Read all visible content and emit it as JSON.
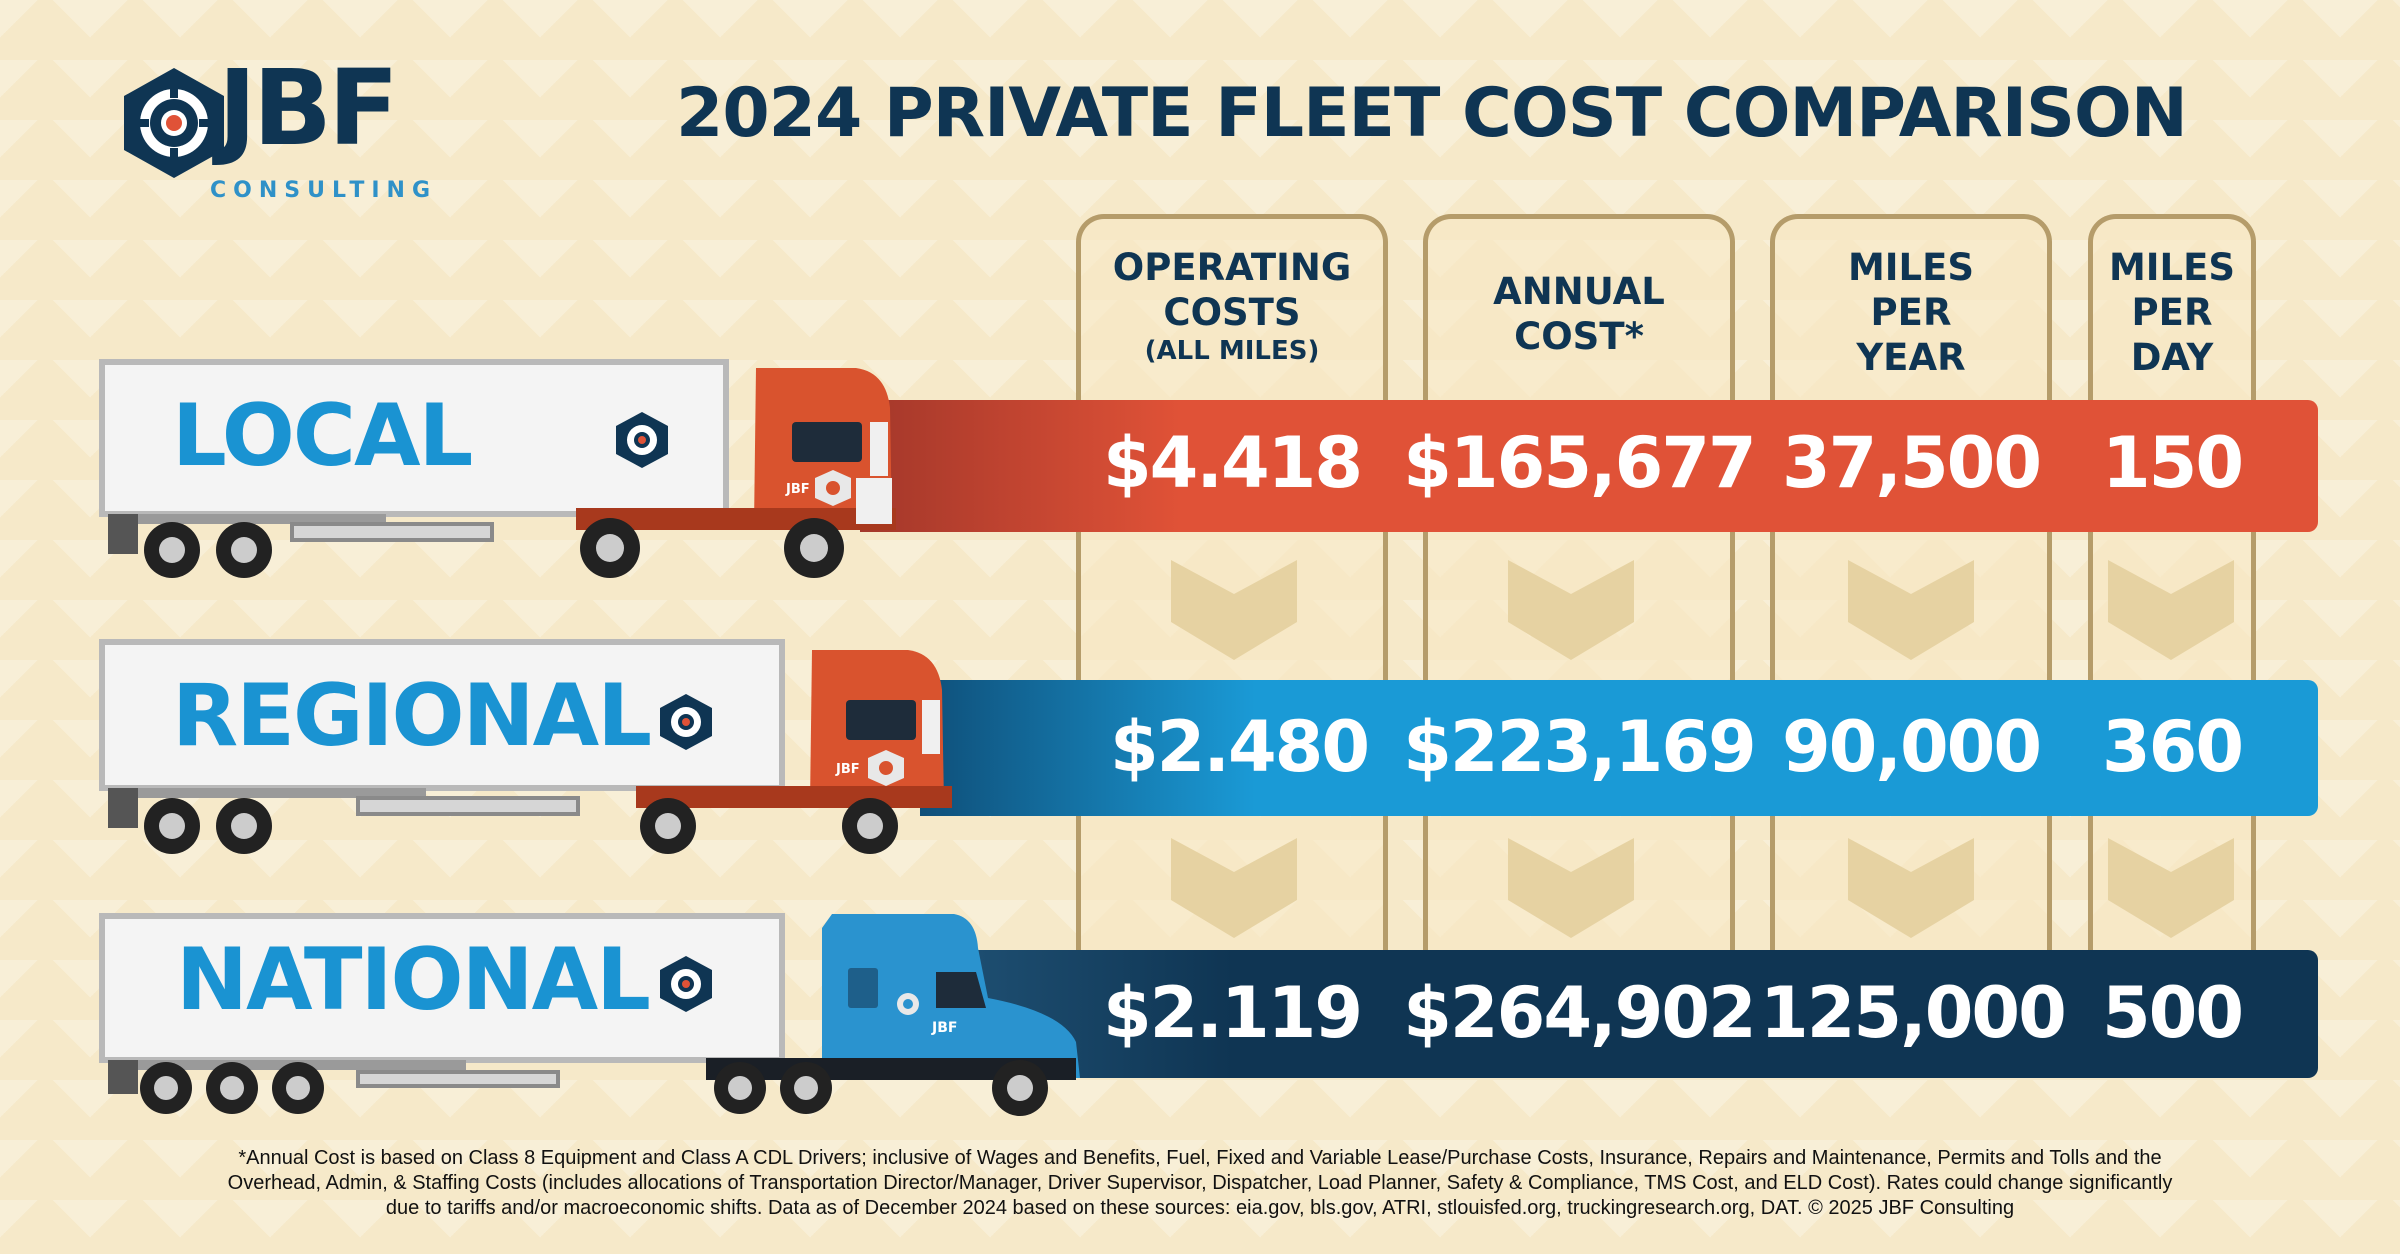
{
  "logo": {
    "name": "JBF",
    "sub": "CONSULTING"
  },
  "title": "2024 PRIVATE FLEET COST COMPARISON",
  "chart_data": {
    "type": "table",
    "title": "2024 PRIVATE FLEET COST COMPARISON",
    "columns": [
      {
        "line1": "OPERATING",
        "line2": "COSTS",
        "line3": "(ALL MILES)"
      },
      {
        "line1": "ANNUAL",
        "line2": "COST*",
        "line3": ""
      },
      {
        "line1": "MILES",
        "line2": "PER",
        "line3": "YEAR"
      },
      {
        "line1": "MILES",
        "line2": "PER",
        "line3": "DAY"
      }
    ],
    "rows": [
      {
        "tier": "LOCAL",
        "operating_cost": "$4.418",
        "annual_cost": "$165,677",
        "miles_per_year": "37,500",
        "miles_per_day": "150"
      },
      {
        "tier": "REGIONAL",
        "operating_cost": "$2.480",
        "annual_cost": "$223,169",
        "miles_per_year": "90,000",
        "miles_per_day": "360"
      },
      {
        "tier": "NATIONAL",
        "operating_cost": "$2.119",
        "annual_cost": "$264,902",
        "miles_per_year": "125,000",
        "miles_per_day": "500"
      }
    ]
  },
  "colors": {
    "local": "#e05237",
    "regional": "#1a9ad6",
    "national": "#0f3553",
    "local_truck": "#d9532e",
    "national_truck": "#2a93cf"
  },
  "icons": [
    "jbf-logo-mark",
    "chevron-down-icon",
    "truck-trailer"
  ],
  "footnote": {
    "line1": "*Annual Cost is based on Class 8 Equipment and Class A CDL Drivers; inclusive of Wages and Benefits, Fuel, Fixed and Variable Lease/Purchase Costs, Insurance, Repairs and Maintenance, Permits and Tolls and the",
    "line2": "Overhead, Admin, & Staffing Costs (includes allocations of Transportation Director/Manager, Driver Supervisor, Dispatcher, Load Planner, Safety & Compliance, TMS Cost, and ELD Cost). Rates could change significantly",
    "line3": "due to tariffs and/or macroeconomic shifts. Data as of December 2024 based on these sources: eia.gov, bls.gov, ATRI, stlouisfed.org, truckingresearch.org, DAT. © 2025 JBF Consulting"
  }
}
